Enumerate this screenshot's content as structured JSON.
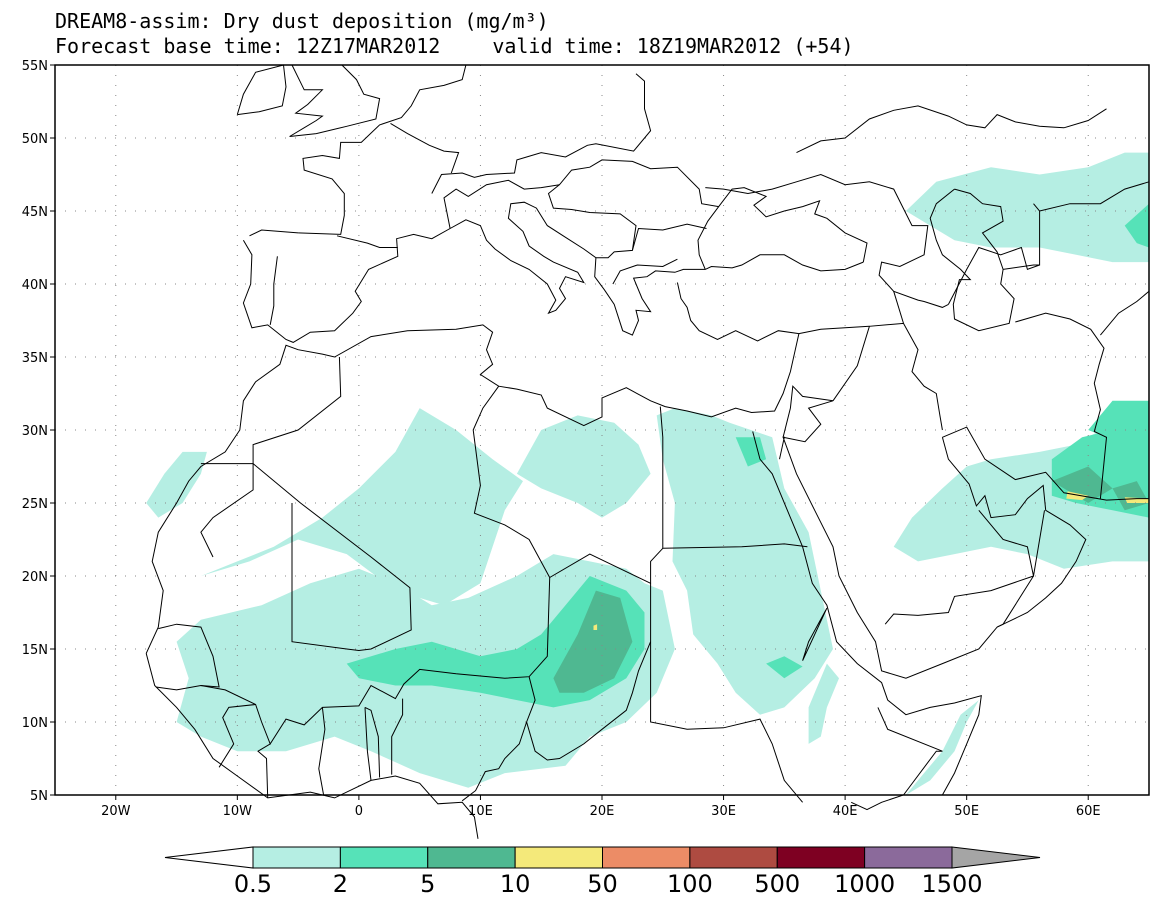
{
  "title": {
    "line1": "DREAM8-assim: Dry dust deposition (mg/m³)",
    "line2_base": "Forecast base time: 12Z17MAR2012",
    "line2_valid": "valid time: 18Z19MAR2012 (+54)"
  },
  "map": {
    "projection": "lat-lon",
    "extent": {
      "lon": [
        -25,
        65
      ],
      "lat": [
        5,
        55
      ]
    },
    "lat_ticks": [
      {
        "value": 55,
        "label": "55N"
      },
      {
        "value": 50,
        "label": "50N"
      },
      {
        "value": 45,
        "label": "45N"
      },
      {
        "value": 40,
        "label": "40N"
      },
      {
        "value": 35,
        "label": "35N"
      },
      {
        "value": 30,
        "label": "30N"
      },
      {
        "value": 25,
        "label": "25N"
      },
      {
        "value": 20,
        "label": "20N"
      },
      {
        "value": 15,
        "label": "15N"
      },
      {
        "value": 10,
        "label": "10N"
      },
      {
        "value": 5,
        "label": "5N"
      }
    ],
    "lon_ticks": [
      {
        "value": -20,
        "label": "20W"
      },
      {
        "value": -10,
        "label": "10W"
      },
      {
        "value": 0,
        "label": "0"
      },
      {
        "value": 10,
        "label": "10E"
      },
      {
        "value": 20,
        "label": "20E"
      },
      {
        "value": 30,
        "label": "30E"
      },
      {
        "value": 40,
        "label": "40E"
      },
      {
        "value": 50,
        "label": "50E"
      },
      {
        "value": 60,
        "label": "60E"
      }
    ],
    "grid": "dotted",
    "features": {
      "coastline": "#000000",
      "borders": "#000000"
    }
  },
  "colorbar": {
    "levels": [
      "0.5",
      "2",
      "5",
      "10",
      "50",
      "100",
      "500",
      "1000",
      "1500"
    ],
    "colors": [
      "#b5eee3",
      "#56e2b8",
      "#4fb891",
      "#f4e97a",
      "#ec8c66",
      "#ae4b41",
      "#7e0022",
      "#8b6a9b"
    ],
    "under_color": "#ffffff",
    "over_color": "#a5a5a5"
  }
}
